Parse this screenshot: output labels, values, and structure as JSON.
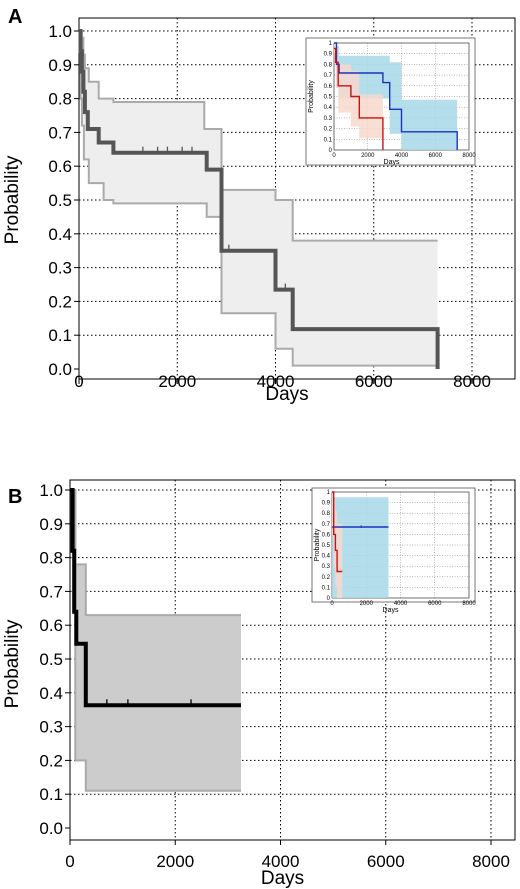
{
  "chart_data": [
    {
      "panel_label": "A",
      "type": "line",
      "subtype": "kaplan-meier step",
      "xlabel": "Days",
      "ylabel": "Probability",
      "xlim": [
        0,
        8000
      ],
      "ylim": [
        0,
        1
      ],
      "xticks": [
        "0",
        "2000",
        "4000",
        "6000",
        "8000"
      ],
      "yticks": [
        "0.0",
        "0.1",
        "0.2",
        "0.3",
        "0.4",
        "0.5",
        "0.6",
        "0.7",
        "0.8",
        "0.9",
        "1.0"
      ],
      "grid": true,
      "colors": {
        "line": "#555555",
        "band_fill": "#eeeeee",
        "band_edge": "#aaaaaa"
      },
      "series": [
        {
          "steps": [
            [
              0,
              1.0
            ],
            [
              30,
              0.94
            ],
            [
              60,
              0.88
            ],
            [
              90,
              0.82
            ],
            [
              120,
              0.76
            ],
            [
              180,
              0.71
            ],
            [
              400,
              0.67
            ],
            [
              700,
              0.64
            ],
            [
              2600,
              0.59
            ],
            [
              2900,
              0.35
            ],
            [
              4000,
              0.235
            ],
            [
              4350,
              0.118
            ],
            [
              7300,
              0.0
            ]
          ],
          "upper": [
            [
              0,
              1.0
            ],
            [
              30,
              1.0
            ],
            [
              60,
              0.98
            ],
            [
              90,
              0.93
            ],
            [
              120,
              0.89
            ],
            [
              200,
              0.85
            ],
            [
              400,
              0.8
            ],
            [
              700,
              0.79
            ],
            [
              2550,
              0.71
            ],
            [
              2900,
              0.53
            ],
            [
              4000,
              0.5
            ],
            [
              4350,
              0.38
            ],
            [
              7300,
              0.38
            ]
          ],
          "lower": [
            [
              0,
              1.0
            ],
            [
              30,
              0.8
            ],
            [
              60,
              0.72
            ],
            [
              100,
              0.62
            ],
            [
              200,
              0.55
            ],
            [
              500,
              0.5
            ],
            [
              700,
              0.49
            ],
            [
              2600,
              0.45
            ],
            [
              2900,
              0.165
            ],
            [
              4000,
              0.06
            ],
            [
              4350,
              0.01
            ],
            [
              7300,
              0.0
            ]
          ],
          "censor": [
            1300,
            1600,
            1800,
            2100,
            2300,
            3050,
            4200
          ],
          "line_width": 4
        }
      ],
      "inset": {
        "type": "line",
        "xlabel": "Days",
        "ylabel": "Probability",
        "xlim": [
          0,
          8000
        ],
        "ylim": [
          0,
          1
        ],
        "xticks": [
          "0",
          "2000",
          "4000",
          "6000",
          "8000"
        ],
        "yticks": [
          "0",
          "0.1",
          "0.2",
          "0.3",
          "0.4",
          "0.5",
          "0.6",
          "0.7",
          "0.8",
          "0.9",
          "1"
        ],
        "series": [
          {
            "color": "#1a33bb",
            "band_color": "#a8d8ea",
            "steps": [
              [
                0,
                1.0
              ],
              [
                150,
                0.8
              ],
              [
                300,
                0.72
              ],
              [
                2900,
                0.63
              ],
              [
                3300,
                0.38
              ],
              [
                4000,
                0.17
              ],
              [
                7300,
                0.0
              ]
            ],
            "upper": [
              [
                0,
                1.0
              ],
              [
                150,
                0.97
              ],
              [
                300,
                0.88
              ],
              [
                3300,
                0.82
              ],
              [
                4000,
                0.47
              ],
              [
                7300,
                0.47
              ]
            ],
            "lower": [
              [
                0,
                1.0
              ],
              [
                150,
                0.58
              ],
              [
                300,
                0.48
              ],
              [
                3300,
                0.15
              ],
              [
                4000,
                0.0
              ],
              [
                7300,
                0.0
              ]
            ]
          },
          {
            "color": "#cc1111",
            "band_color": "#f8d8cc",
            "steps": [
              [
                0,
                0.95
              ],
              [
                100,
                0.82
              ],
              [
                250,
                0.6
              ],
              [
                1000,
                0.5
              ],
              [
                1500,
                0.3
              ],
              [
                2900,
                0.0
              ]
            ],
            "upper": [
              [
                0,
                1.0
              ],
              [
                100,
                0.96
              ],
              [
                250,
                0.8
              ],
              [
                1000,
                0.74
              ],
              [
                1500,
                0.52
              ],
              [
                2900,
                0.52
              ]
            ],
            "lower": [
              [
                0,
                0.9
              ],
              [
                100,
                0.58
              ],
              [
                250,
                0.35
              ],
              [
                1000,
                0.22
              ],
              [
                1500,
                0.11
              ],
              [
                2900,
                0.11
              ]
            ]
          }
        ]
      }
    },
    {
      "panel_label": "B",
      "type": "line",
      "subtype": "kaplan-meier step",
      "xlabel": "Days",
      "ylabel": "Probability",
      "xlim": [
        0,
        8000
      ],
      "ylim": [
        0,
        1
      ],
      "xticks": [
        "0",
        "2000",
        "4000",
        "6000",
        "8000"
      ],
      "yticks": [
        "0.0",
        "0.1",
        "0.2",
        "0.3",
        "0.4",
        "0.5",
        "0.6",
        "0.7",
        "0.8",
        "0.9",
        "1.0"
      ],
      "grid": true,
      "colors": {
        "line": "#000000",
        "band_fill": "#cccccc",
        "band_edge": "#aaaaaa"
      },
      "series": [
        {
          "steps": [
            [
              0,
              1.0
            ],
            [
              50,
              0.82
            ],
            [
              80,
              0.64
            ],
            [
              120,
              0.545
            ],
            [
              300,
              0.363
            ],
            [
              3250,
              0.363
            ]
          ],
          "upper": [
            [
              0,
              1.0
            ],
            [
              100,
              0.78
            ],
            [
              300,
              0.63
            ],
            [
              3250,
              0.63
            ]
          ],
          "lower": [
            [
              0,
              1.0
            ],
            [
              100,
              0.2
            ],
            [
              300,
              0.11
            ],
            [
              3250,
              0.11
            ]
          ],
          "censor": [
            700,
            1100,
            2300
          ],
          "line_width": 4
        }
      ],
      "inset": {
        "type": "line",
        "xlabel": "Days",
        "ylabel": "Probability",
        "xlim": [
          0,
          8000
        ],
        "ylim": [
          0,
          1
        ],
        "xticks": [
          "0",
          "2000",
          "4000",
          "6000",
          "8000"
        ],
        "yticks": [
          "0",
          "0.1",
          "0.2",
          "0.3",
          "0.4",
          "0.5",
          "0.6",
          "0.7",
          "0.8",
          "0.9",
          "1"
        ],
        "series": [
          {
            "color": "#1a33bb",
            "band_color": "#a8d8ea",
            "steps": [
              [
                0,
                0.67
              ],
              [
                3300,
                0.67
              ]
            ],
            "upper": [
              [
                0,
                0.95
              ],
              [
                3300,
                0.95
              ]
            ],
            "lower": [
              [
                0,
                0.0
              ],
              [
                3300,
                0.0
              ]
            ],
            "censor": [
              1700
            ]
          },
          {
            "color": "#cc1111",
            "band_color": "#f8d8cc",
            "steps": [
              [
                0,
                1.0
              ],
              [
                100,
                0.6
              ],
              [
                200,
                0.45
              ],
              [
                300,
                0.25
              ],
              [
                600,
                0.25
              ]
            ],
            "upper": [
              [
                0,
                1.0
              ],
              [
                100,
                0.92
              ],
              [
                200,
                0.82
              ],
              [
                300,
                0.7
              ],
              [
                600,
                0.7
              ]
            ],
            "lower": [
              [
                0,
                0.6
              ],
              [
                100,
                0.28
              ],
              [
                200,
                0.1
              ],
              [
                300,
                0.0
              ],
              [
                600,
                0.0
              ]
            ]
          }
        ]
      }
    }
  ]
}
